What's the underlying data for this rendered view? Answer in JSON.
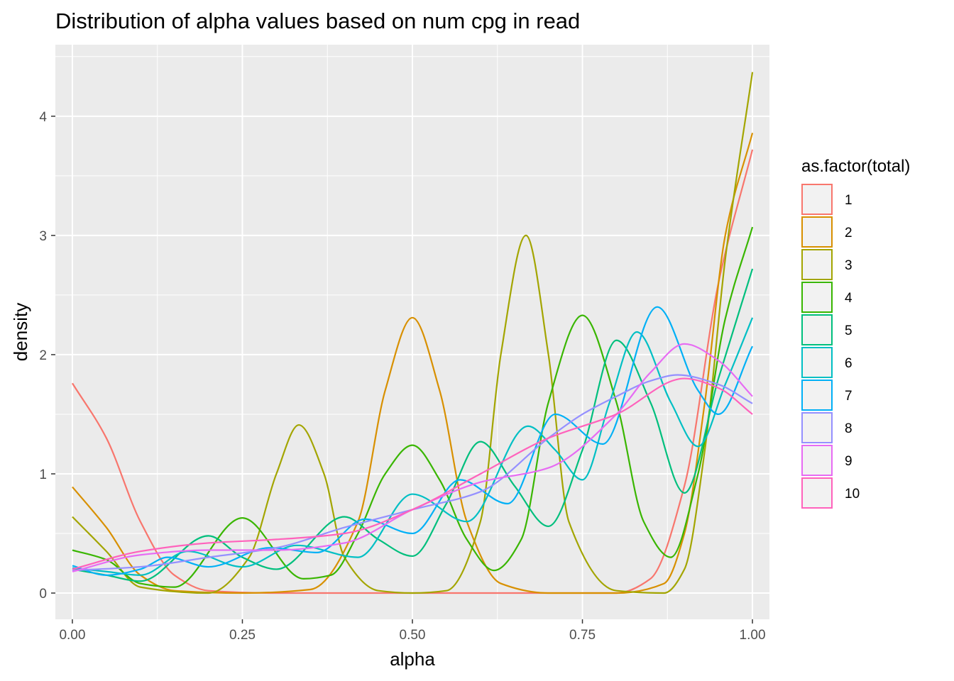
{
  "chart_data": {
    "type": "line",
    "subtype": "density",
    "title": "Distribution of alpha values based on num cpg in read",
    "xlabel": "alpha",
    "ylabel": "density",
    "xlim": [
      -0.025,
      1.025
    ],
    "ylim": [
      -0.22,
      4.6
    ],
    "x_ticks": [
      0,
      0.25,
      0.5,
      0.75,
      1.0
    ],
    "x_tick_labels": [
      "0.00",
      "0.25",
      "0.50",
      "0.75",
      "1.00"
    ],
    "y_ticks": [
      0,
      1,
      2,
      3,
      4
    ],
    "y_tick_labels": [
      "0",
      "1",
      "2",
      "3",
      "4"
    ],
    "grid": true,
    "legend": {
      "title": "as.factor(total)",
      "position": "right",
      "entries": [
        "1",
        "2",
        "3",
        "4",
        "5",
        "6",
        "7",
        "8",
        "9",
        "10"
      ]
    },
    "series": [
      {
        "name": "1",
        "color": "#F8766D",
        "x": [
          0.0,
          0.05,
          0.1,
          0.15,
          0.2,
          0.3,
          0.5,
          0.8,
          0.85,
          0.9,
          0.95,
          1.0
        ],
        "y": [
          1.76,
          1.3,
          0.6,
          0.15,
          0.02,
          0.0,
          0.0,
          0.0,
          0.12,
          0.9,
          2.6,
          3.72
        ]
      },
      {
        "name": "2",
        "color": "#D89000",
        "x": [
          0.0,
          0.05,
          0.1,
          0.15,
          0.25,
          0.35,
          0.42,
          0.46,
          0.5,
          0.54,
          0.58,
          0.63,
          0.7,
          0.8,
          0.87,
          0.9,
          0.93,
          0.96,
          1.0
        ],
        "y": [
          0.89,
          0.55,
          0.15,
          0.02,
          0.0,
          0.03,
          0.6,
          1.7,
          2.31,
          1.7,
          0.6,
          0.08,
          0.0,
          0.0,
          0.08,
          0.5,
          1.6,
          3.0,
          3.86
        ]
      },
      {
        "name": "3",
        "color": "#A3A500",
        "x": [
          0.0,
          0.05,
          0.1,
          0.2,
          0.26,
          0.3,
          0.333,
          0.37,
          0.4,
          0.45,
          0.5,
          0.55,
          0.6,
          0.63,
          0.667,
          0.7,
          0.73,
          0.8,
          0.87,
          0.9,
          0.93,
          0.96,
          1.0
        ],
        "y": [
          0.64,
          0.35,
          0.05,
          0.0,
          0.3,
          1.0,
          1.41,
          1.0,
          0.3,
          0.02,
          0.0,
          0.02,
          0.6,
          2.0,
          3.0,
          2.0,
          0.6,
          0.02,
          0.0,
          0.2,
          1.2,
          2.8,
          4.37
        ]
      },
      {
        "name": "4",
        "color": "#39B600",
        "x": [
          0.0,
          0.05,
          0.1,
          0.15,
          0.25,
          0.34,
          0.38,
          0.42,
          0.46,
          0.5,
          0.54,
          0.58,
          0.62,
          0.66,
          0.7,
          0.75,
          0.8,
          0.84,
          0.88,
          0.92,
          0.96,
          1.0
        ],
        "y": [
          0.36,
          0.28,
          0.08,
          0.05,
          0.63,
          0.12,
          0.15,
          0.5,
          1.0,
          1.24,
          0.95,
          0.45,
          0.19,
          0.45,
          1.6,
          2.33,
          1.6,
          0.6,
          0.3,
          1.0,
          2.3,
          3.07
        ]
      },
      {
        "name": "5",
        "color": "#00BF7D",
        "x": [
          0.0,
          0.05,
          0.1,
          0.2,
          0.25,
          0.3,
          0.4,
          0.45,
          0.5,
          0.55,
          0.6,
          0.65,
          0.7,
          0.75,
          0.8,
          0.85,
          0.9,
          0.95,
          1.0
        ],
        "y": [
          0.2,
          0.15,
          0.1,
          0.48,
          0.3,
          0.2,
          0.64,
          0.45,
          0.31,
          0.75,
          1.27,
          0.9,
          0.56,
          1.2,
          2.12,
          1.6,
          0.84,
          1.8,
          2.72
        ]
      },
      {
        "name": "6",
        "color": "#00BFC4",
        "x": [
          0.0,
          0.05,
          0.1,
          0.17,
          0.25,
          0.33,
          0.42,
          0.5,
          0.58,
          0.67,
          0.71,
          0.75,
          0.79,
          0.83,
          0.88,
          0.92,
          0.96,
          1.0
        ],
        "y": [
          0.21,
          0.18,
          0.15,
          0.35,
          0.22,
          0.4,
          0.3,
          0.83,
          0.6,
          1.4,
          1.2,
          0.95,
          1.6,
          2.19,
          1.6,
          1.23,
          1.75,
          2.31
        ]
      },
      {
        "name": "7",
        "color": "#00B0F6",
        "x": [
          0.0,
          0.05,
          0.1,
          0.14,
          0.2,
          0.29,
          0.36,
          0.43,
          0.5,
          0.57,
          0.64,
          0.71,
          0.78,
          0.86,
          0.92,
          0.95,
          1.0
        ],
        "y": [
          0.23,
          0.15,
          0.2,
          0.3,
          0.22,
          0.38,
          0.34,
          0.62,
          0.5,
          0.95,
          0.75,
          1.5,
          1.25,
          2.4,
          1.7,
          1.5,
          2.07
        ]
      },
      {
        "name": "8",
        "color": "#9590FF",
        "x": [
          0.0,
          0.1,
          0.2,
          0.3,
          0.4,
          0.5,
          0.6,
          0.7,
          0.75,
          0.8,
          0.85,
          0.89,
          0.95,
          1.0
        ],
        "y": [
          0.19,
          0.22,
          0.3,
          0.38,
          0.55,
          0.7,
          0.85,
          1.3,
          1.5,
          1.65,
          1.78,
          1.83,
          1.75,
          1.59
        ]
      },
      {
        "name": "9",
        "color": "#E76BF3",
        "x": [
          0.0,
          0.1,
          0.2,
          0.3,
          0.4,
          0.5,
          0.6,
          0.7,
          0.8,
          0.85,
          0.9,
          0.95,
          1.0
        ],
        "y": [
          0.18,
          0.32,
          0.36,
          0.36,
          0.42,
          0.7,
          0.93,
          1.05,
          1.5,
          1.85,
          2.09,
          1.95,
          1.65
        ]
      },
      {
        "name": "10",
        "color": "#FF62BC",
        "x": [
          0.0,
          0.1,
          0.2,
          0.3,
          0.4,
          0.5,
          0.6,
          0.7,
          0.8,
          0.9,
          0.95,
          1.0
        ],
        "y": [
          0.2,
          0.35,
          0.42,
          0.45,
          0.5,
          0.7,
          1.0,
          1.3,
          1.5,
          1.8,
          1.72,
          1.5
        ]
      }
    ]
  }
}
